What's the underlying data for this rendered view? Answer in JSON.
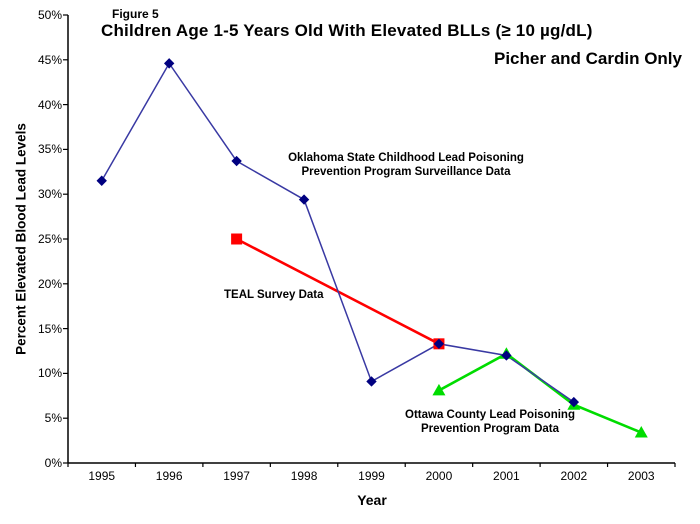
{
  "figure_label": "Figure 5",
  "title": "Children Age 1-5 Years Old With Elevated BLLs (≥ 10 µg/dL)",
  "subtitle": "Picher and Cardin Only",
  "chart_data": {
    "type": "line",
    "x": [
      "1995",
      "1996",
      "1997",
      "1998",
      "1999",
      "2000",
      "2001",
      "2002",
      "2003"
    ],
    "xlabel": "Year",
    "ylabel": "Percent Elevated Blood Lead Levels",
    "ylim": [
      0,
      50
    ],
    "y_tick_step": 5,
    "y_tick_labels": [
      "0%",
      "5%",
      "10%",
      "15%",
      "20%",
      "25%",
      "30%",
      "35%",
      "40%",
      "45%",
      "50%"
    ],
    "grid": false,
    "legend_position": "none",
    "background": "#ffffff",
    "axis_color": "#000000",
    "series": [
      {
        "name": "Oklahoma State Childhood Lead Poisoning Prevention Program Surveillance Data",
        "marker": "diamond",
        "line_color": "#3939A3",
        "marker_color": "#000080",
        "line_width": 1.5,
        "points": [
          [
            "1995",
            31.5
          ],
          [
            "1996",
            44.6
          ],
          [
            "1997",
            33.7
          ],
          [
            "1998",
            29.4
          ],
          [
            "1999",
            9.1
          ],
          [
            "2000",
            13.3
          ],
          [
            "2001",
            12.0
          ],
          [
            "2002",
            6.8
          ]
        ]
      },
      {
        "name": "TEAL Survey Data",
        "marker": "square",
        "line_color": "#FF0000",
        "marker_color": "#FF0000",
        "line_width": 2.6,
        "points": [
          [
            "1997",
            25.0
          ],
          [
            "2000",
            13.3
          ]
        ]
      },
      {
        "name": "Ottawa County Lead Poisoning Prevention Program Data",
        "marker": "triangle",
        "line_color": "#00DC00",
        "marker_color": "#00DC00",
        "line_width": 2.6,
        "points": [
          [
            "2000",
            8.1
          ],
          [
            "2001",
            12.2
          ],
          [
            "2002",
            6.5
          ],
          [
            "2003",
            3.4
          ]
        ]
      }
    ],
    "annotations": [
      {
        "line1": "Oklahoma State Childhood Lead Poisoning",
        "line2": "Prevention Program Surveillance Data"
      },
      {
        "line1": "TEAL Survey Data"
      },
      {
        "line1": "Ottawa County Lead Poisoning",
        "line2": "Prevention Program Data"
      }
    ]
  }
}
